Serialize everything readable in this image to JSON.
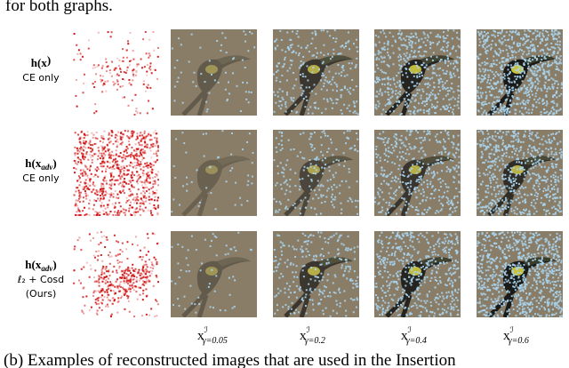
{
  "top_text": "for both graphs.",
  "rows": [
    {
      "label": {
        "main": "h(x",
        "sub": "",
        "close": ")"
      },
      "method": "CE only"
    },
    {
      "label": {
        "main": "h(x",
        "sub": "adv",
        "close": ")"
      },
      "method": "CE only"
    },
    {
      "label": {
        "main": "h(x",
        "sub": "adv",
        "close": ")"
      },
      "method": "ℓ₂ + Cosd",
      "note": "(Ours)"
    }
  ],
  "columns": [
    {
      "base": "x",
      "sup": "ℐ",
      "sub": "γ=0.05"
    },
    {
      "base": "x",
      "sup": "ℐ",
      "sub": "γ=0.2"
    },
    {
      "base": "x",
      "sup": "ℐ",
      "sub": "γ=0.4"
    },
    {
      "base": "x",
      "sup": "ℐ",
      "sub": "γ=0.6"
    }
  ],
  "caption": "(b) Examples of reconstructed images that are used in the Insertion"
}
